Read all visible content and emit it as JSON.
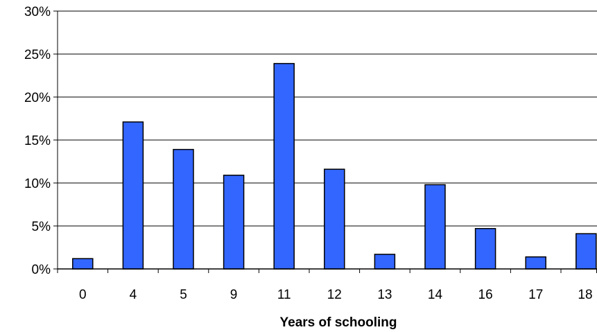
{
  "chart_data": {
    "type": "bar",
    "title": "",
    "xlabel": "Years of schooling",
    "ylabel": "",
    "categories": [
      "0",
      "4",
      "5",
      "9",
      "11",
      "12",
      "13",
      "14",
      "16",
      "17",
      "18"
    ],
    "values": [
      1.2,
      17.1,
      13.9,
      10.9,
      23.9,
      11.6,
      1.7,
      9.8,
      4.7,
      1.4,
      4.1
    ],
    "ylim": [
      0,
      30
    ],
    "yticks": [
      0,
      5,
      10,
      15,
      20,
      25,
      30
    ],
    "ytick_labels": [
      "0%",
      "5%",
      "10%",
      "15%",
      "20%",
      "25%",
      "30%"
    ],
    "y_unit": "%",
    "grid": true,
    "legend": "none",
    "colors": {
      "bar_fill": "#3366FF",
      "bar_stroke": "#000000",
      "grid": "#000000",
      "axis": "#000000"
    }
  }
}
